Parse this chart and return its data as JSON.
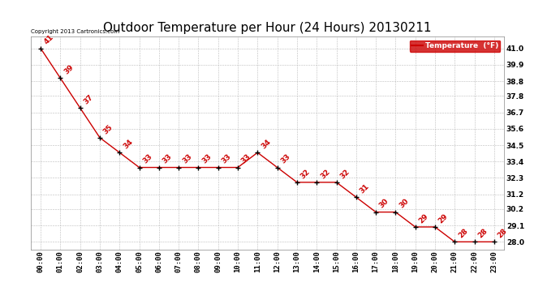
{
  "title": "Outdoor Temperature per Hour (24 Hours) 20130211",
  "copyright": "Copyright 2013 Cartronics.com",
  "legend_label": "Temperature  (°F)",
  "hours": [
    "00:00",
    "01:00",
    "02:00",
    "03:00",
    "04:00",
    "05:00",
    "06:00",
    "07:00",
    "08:00",
    "09:00",
    "10:00",
    "11:00",
    "12:00",
    "13:00",
    "14:00",
    "15:00",
    "16:00",
    "17:00",
    "18:00",
    "19:00",
    "20:00",
    "21:00",
    "22:00",
    "23:00"
  ],
  "temperatures": [
    41,
    39,
    37,
    35,
    34,
    33,
    33,
    33,
    33,
    33,
    33,
    34,
    33,
    32,
    32,
    32,
    31,
    30,
    30,
    29,
    29,
    28,
    28,
    28
  ],
  "y_ticks": [
    28.0,
    29.1,
    30.2,
    31.2,
    32.3,
    33.4,
    34.5,
    35.6,
    36.7,
    37.8,
    38.8,
    39.9,
    41.0
  ],
  "ylim_min": 27.5,
  "ylim_max": 41.8,
  "line_color": "#cc0000",
  "marker_color": "black",
  "label_color": "#cc0000",
  "bg_color": "white",
  "grid_color": "#bbbbbb",
  "title_fontsize": 11,
  "label_fontsize": 6.5,
  "annotation_fontsize": 6.5
}
